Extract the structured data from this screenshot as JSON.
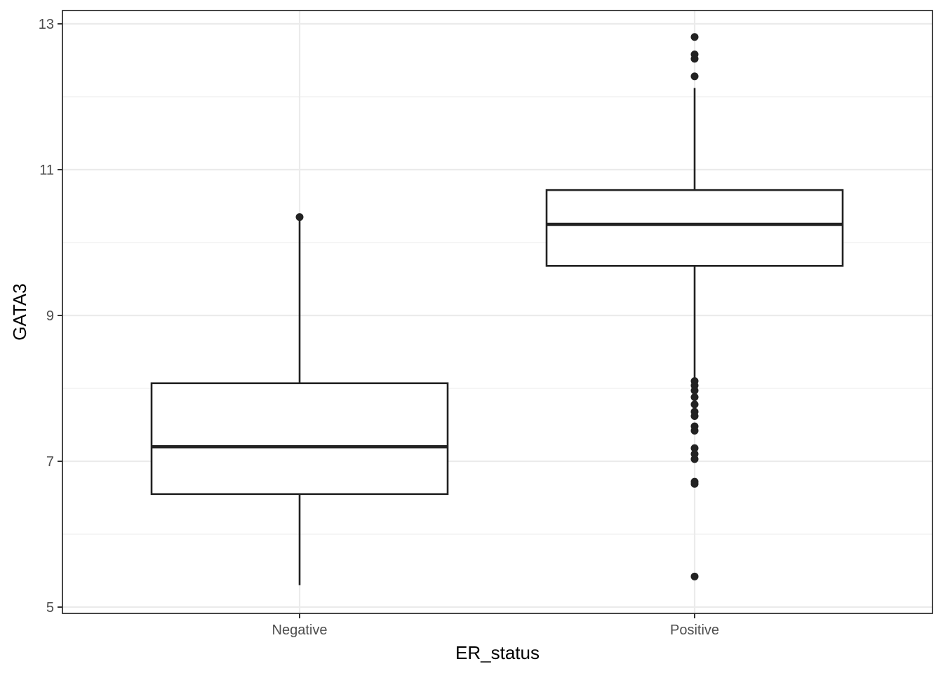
{
  "chart_data": {
    "type": "boxplot",
    "title": "",
    "xlabel": "ER_status",
    "ylabel": "GATA3",
    "categories": [
      "Negative",
      "Positive"
    ],
    "ylim": [
      4.9,
      13.2
    ],
    "yticks": [
      5,
      7,
      9,
      11,
      13
    ],
    "ytick_labels": [
      "5",
      "7",
      "9",
      "11",
      "13"
    ],
    "grid": true,
    "boxes": [
      {
        "category": "Negative",
        "whisker_low": 5.3,
        "q1": 6.55,
        "median": 7.2,
        "q3": 8.07,
        "whisker_high": 10.35,
        "outliers": [
          10.35
        ]
      },
      {
        "category": "Positive",
        "whisker_low": 8.1,
        "q1": 9.68,
        "median": 10.25,
        "q3": 10.72,
        "whisker_high": 12.12,
        "outliers": [
          12.82,
          12.58,
          12.52,
          12.28,
          8.1,
          8.04,
          7.97,
          7.88,
          7.78,
          7.68,
          7.62,
          7.48,
          7.42,
          7.18,
          7.1,
          7.03,
          6.72,
          6.69,
          5.42
        ]
      }
    ]
  }
}
